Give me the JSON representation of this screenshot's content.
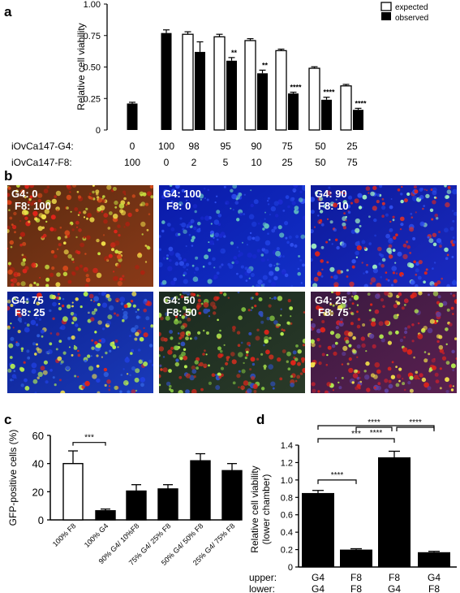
{
  "panel_labels": {
    "a": "a",
    "b": "b",
    "c": "c",
    "d": "d"
  },
  "colors": {
    "observed": "#000000",
    "expected": "#ffffff",
    "red": "#e0241a",
    "blue": "#1a2ad0",
    "green": "#b6f050",
    "yellow": "#f2e14a"
  },
  "chart_data": [
    {
      "id": "a",
      "type": "bar",
      "ylabel": "Relative cell viability",
      "ylim": [
        0,
        1.0
      ],
      "yticks": [
        "0",
        "0.25",
        "0.50",
        "0.75",
        "1.00"
      ],
      "ytick_values": [
        0,
        0.25,
        0.5,
        0.75,
        1.0
      ],
      "row_labels": [
        "iOvCa147-G4:",
        "iOvCa147-F8:"
      ],
      "categories_g4": [
        "0",
        "100",
        "98",
        "95",
        "90",
        "75",
        "50",
        "25"
      ],
      "categories_f8": [
        "100",
        "0",
        "2",
        "5",
        "10",
        "25",
        "50",
        "75"
      ],
      "legend": [
        "expected",
        "observed"
      ],
      "legend_position": "top-right",
      "series": [
        {
          "name": "expected",
          "values": [
            null,
            null,
            0.76,
            0.74,
            0.71,
            0.63,
            0.49,
            0.35
          ],
          "errors": [
            null,
            null,
            0.02,
            0.02,
            0.015,
            0.012,
            0.012,
            0.012
          ]
        },
        {
          "name": "observed",
          "values": [
            0.21,
            0.77,
            0.62,
            0.55,
            0.45,
            0.29,
            0.24,
            0.16
          ],
          "errors": [
            0.01,
            0.025,
            0.08,
            0.025,
            0.025,
            0.01,
            0.02,
            0.012
          ]
        }
      ],
      "significance": [
        "",
        "",
        "",
        "**",
        "**",
        "****",
        "****",
        "****"
      ]
    },
    {
      "id": "c",
      "type": "bar",
      "ylabel": "GFP-positive cells (%)",
      "ylim": [
        0,
        60
      ],
      "yticks": [
        "0",
        "20",
        "40",
        "60"
      ],
      "ytick_values": [
        0,
        20,
        40,
        60
      ],
      "categories": [
        "100% F8",
        "100% G4",
        "90% G4/ 10%F8",
        "75% G4/ 25% F8",
        "50% G4/ 50% F8",
        "25% G4/ 75% F8"
      ],
      "values": [
        40,
        6.5,
        20.5,
        22,
        42,
        35
      ],
      "errors": [
        9,
        1.2,
        4.5,
        3,
        5,
        5
      ],
      "fills": [
        "#ffffff",
        "#000000",
        "#000000",
        "#000000",
        "#000000",
        "#000000"
      ],
      "brackets": [
        {
          "from": 0,
          "to": 1,
          "label": "***"
        }
      ]
    },
    {
      "id": "d",
      "type": "bar",
      "ylabel": "Relative cell viability",
      "ylabel2": "(lower chamber)",
      "ylim": [
        0,
        1.4
      ],
      "yticks": [
        "0",
        "0.2",
        "0.4",
        "0.6",
        "0.8",
        "1.0",
        "1.2",
        "1.4"
      ],
      "ytick_values": [
        0,
        0.2,
        0.4,
        0.6,
        0.8,
        1.0,
        1.2,
        1.4
      ],
      "row_labels": [
        "upper:",
        "lower:"
      ],
      "categories_upper": [
        "G4",
        "F8",
        "F8",
        "G4"
      ],
      "categories_lower": [
        "G4",
        "F8",
        "G4",
        "F8"
      ],
      "values": [
        0.85,
        0.2,
        1.26,
        0.17
      ],
      "errors": [
        0.03,
        0.01,
        0.07,
        0.01
      ],
      "brackets": [
        {
          "from": 0,
          "to": 1,
          "label": "****",
          "level": 0
        },
        {
          "from": 0,
          "to": 2,
          "label": "***",
          "level": 1
        },
        {
          "from": 0,
          "to": 3,
          "label": "****",
          "level": 2
        },
        {
          "from": 1,
          "to": 2,
          "label": "****",
          "level": 3
        },
        {
          "from": 2,
          "to": 3,
          "label": "****",
          "level": 3
        }
      ]
    }
  ],
  "micrographs": [
    {
      "g4": "G4: 0",
      "f8": "F8: 100",
      "mix": "redyellow"
    },
    {
      "g4": "G4: 100",
      "f8": "F8: 0",
      "mix": "blue"
    },
    {
      "g4": "G4: 90",
      "f8": "F8: 10",
      "mix": "bluered"
    },
    {
      "g4": "G4: 75",
      "f8": "F8: 25",
      "mix": "bluegreen"
    },
    {
      "g4": "G4: 50",
      "f8": "F8: 50",
      "mix": "darkgreen"
    },
    {
      "g4": "G4: 25",
      "f8": "F8: 75",
      "mix": "redpurple"
    }
  ]
}
